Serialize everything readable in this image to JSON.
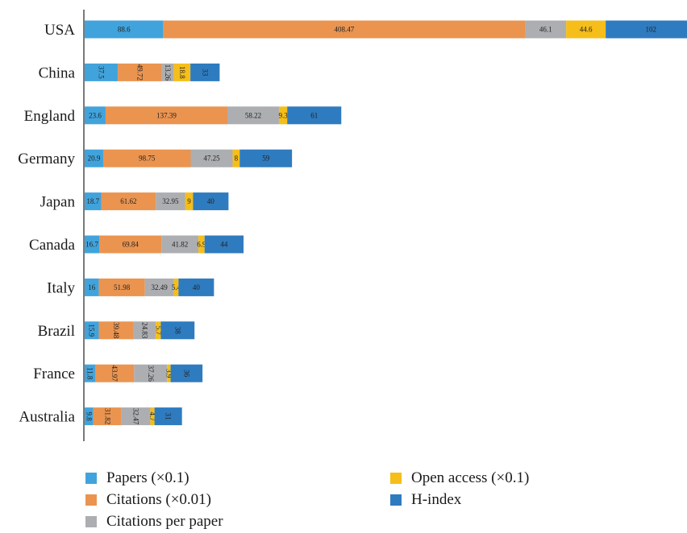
{
  "chart_data": {
    "type": "bar",
    "orientation": "horizontal",
    "stacked": true,
    "categories": [
      "USA",
      "China",
      "England",
      "Germany",
      "Japan",
      "Canada",
      "Italy",
      "Brazil",
      "France",
      "Australia"
    ],
    "series": [
      {
        "name": "Papers (×0.1)",
        "color": "#41a3dc",
        "values": [
          88.6,
          37.5,
          23.6,
          20.9,
          18.7,
          16.7,
          16,
          15.9,
          11.8,
          9.8
        ],
        "labels": [
          "88.6",
          "37.5",
          "23.6",
          "20.9",
          "18.7",
          "16.7",
          "16",
          "15.9",
          "11.8",
          "9.8"
        ]
      },
      {
        "name": "Citations (×0.01)",
        "color": "#ea9450",
        "values": [
          408.47,
          49.72,
          137.39,
          98.75,
          61.62,
          69.84,
          51.98,
          39.48,
          43.97,
          31.82
        ],
        "labels": [
          "408.47",
          "49.72",
          "137.39",
          "98.75",
          "61.62",
          "69.84",
          "51.98",
          "39.48",
          "43.97",
          "31.82"
        ]
      },
      {
        "name": "Citations per paper",
        "color": "#acaeb1",
        "values": [
          46.1,
          13.26,
          58.22,
          47.25,
          32.95,
          41.82,
          32.49,
          24.83,
          37.26,
          32.47
        ],
        "labels": [
          "46.1",
          "13.26",
          "58.22",
          "47.25",
          "32.95",
          "41.82",
          "32.49",
          "24.83",
          "37.26",
          "32.47"
        ]
      },
      {
        "name": "Open access (×0.1)",
        "color": "#f6be1a",
        "values": [
          44.6,
          18.8,
          9.3,
          8,
          9,
          6.9,
          5.4,
          5.7,
          3.9,
          4.7
        ],
        "labels": [
          "44.6",
          "18.8",
          "9.3",
          "8",
          "9",
          "6.9",
          "5.4",
          "5.7",
          "3.9",
          "4.7"
        ]
      },
      {
        "name": "H-index",
        "color": "#2f7bbf",
        "values": [
          102,
          33,
          61,
          59,
          40,
          44,
          40,
          38,
          36,
          31
        ],
        "labels": [
          "102",
          "33",
          "61",
          "59",
          "40",
          "44",
          "40",
          "38",
          "36",
          "31"
        ]
      }
    ],
    "rotated_label_categories": [
      "China",
      "Brazil",
      "France",
      "Australia"
    ],
    "legend_position": "bottom",
    "grid": false
  }
}
